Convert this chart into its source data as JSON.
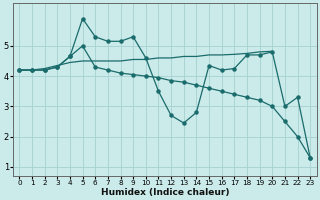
{
  "xlabel": "Humidex (Indice chaleur)",
  "xlim": [
    -0.5,
    23.5
  ],
  "ylim": [
    0.7,
    6.4
  ],
  "yticks": [
    1,
    2,
    3,
    4,
    5
  ],
  "xticks": [
    0,
    1,
    2,
    3,
    4,
    5,
    6,
    7,
    8,
    9,
    10,
    11,
    12,
    13,
    14,
    15,
    16,
    17,
    18,
    19,
    20,
    21,
    22,
    23
  ],
  "bg_color": "#cbeaea",
  "grid_color": "#aad4d4",
  "line_color": "#1a6b6b",
  "line1_x": [
    0,
    1,
    2,
    3,
    4,
    5,
    6,
    7,
    8,
    9,
    10,
    11,
    12,
    13,
    14,
    15,
    16,
    17,
    18,
    19,
    20,
    21,
    22,
    23
  ],
  "line1_y": [
    4.2,
    4.2,
    4.2,
    4.3,
    4.65,
    5.0,
    4.3,
    4.2,
    4.1,
    4.05,
    4.0,
    3.95,
    3.85,
    3.8,
    3.7,
    3.6,
    3.5,
    3.4,
    3.3,
    3.2,
    3.0,
    2.5,
    2.0,
    1.3
  ],
  "line2_x": [
    0,
    1,
    2,
    3,
    4,
    5,
    6,
    7,
    8,
    9,
    10,
    11,
    12,
    13,
    14,
    15,
    16,
    17,
    18,
    19,
    20,
    21,
    22,
    23
  ],
  "line2_y": [
    4.2,
    4.2,
    4.2,
    4.3,
    4.65,
    5.9,
    5.3,
    5.15,
    5.15,
    5.3,
    4.6,
    3.5,
    2.7,
    2.45,
    2.8,
    4.35,
    4.2,
    4.25,
    4.7,
    4.7,
    4.8,
    3.0,
    3.3,
    1.3
  ],
  "line3_x": [
    0,
    1,
    2,
    3,
    4,
    5,
    6,
    7,
    8,
    9,
    10,
    11,
    12,
    13,
    14,
    15,
    16,
    17,
    18,
    19,
    20
  ],
  "line3_y": [
    4.2,
    4.2,
    4.25,
    4.35,
    4.45,
    4.5,
    4.5,
    4.5,
    4.5,
    4.55,
    4.55,
    4.6,
    4.6,
    4.65,
    4.65,
    4.7,
    4.7,
    4.72,
    4.75,
    4.8,
    4.82
  ]
}
